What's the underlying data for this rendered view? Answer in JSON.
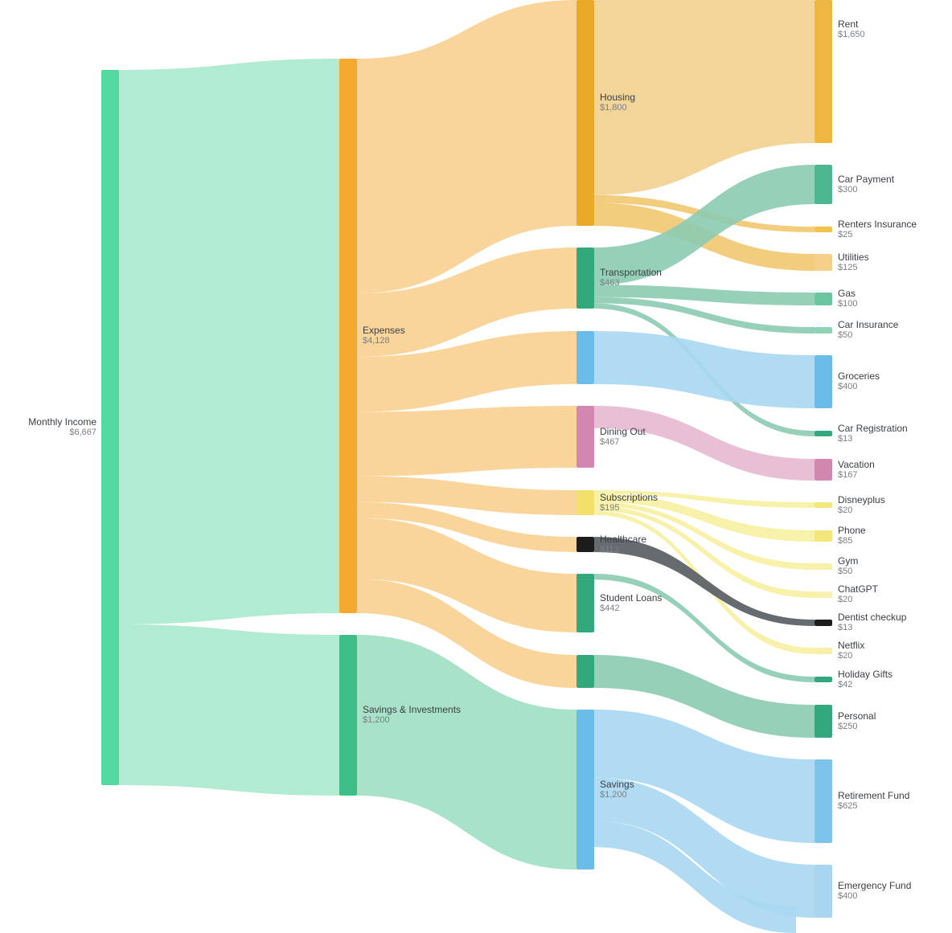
{
  "chart_data": {
    "type": "sankey",
    "nodes": [
      {
        "id": "income",
        "label": "Monthly Income",
        "value": "$6,667",
        "color": "#52d9a0"
      },
      {
        "id": "expenses",
        "label": "Expenses",
        "value": "$4,128",
        "color": "#f5a92e"
      },
      {
        "id": "savinv",
        "label": "Savings & Investments",
        "value": "$1,200",
        "color": "#3dbe88"
      },
      {
        "id": "housing",
        "label": "Housing",
        "value": "$1,800",
        "color": "#e9aa2a"
      },
      {
        "id": "transport",
        "label": "Transportation",
        "value": "$463",
        "color": "#33a87c"
      },
      {
        "id": "food",
        "label": "",
        "value": "",
        "color": "#6bbde9"
      },
      {
        "id": "dining",
        "label": "Dining Out",
        "value": "$467",
        "color": "#d286b0"
      },
      {
        "id": "subs",
        "label": "Subscriptions",
        "value": "$195",
        "color": "#f2e06a"
      },
      {
        "id": "health",
        "label": "Healthcare",
        "value": "$113",
        "color": "#1c1c1c"
      },
      {
        "id": "loans",
        "label": "Student Loans",
        "value": "$442",
        "color": "#33a87c"
      },
      {
        "id": "misc",
        "label": "",
        "value": "",
        "color": "#33a87c"
      },
      {
        "id": "savings",
        "label": "Savings",
        "value": "$1,200",
        "color": "#6bbde9"
      },
      {
        "id": "rent",
        "label": "Rent",
        "value": "$1,650",
        "color": "#edb640"
      },
      {
        "id": "carpay",
        "label": "Car Payment",
        "value": "$300",
        "color": "#4db890"
      },
      {
        "id": "renters",
        "label": "Renters Insurance",
        "value": "$25",
        "color": "#f3c04a"
      },
      {
        "id": "utilities",
        "label": "Utilities",
        "value": "$125",
        "color": "#f4d08a"
      },
      {
        "id": "gas",
        "label": "Gas",
        "value": "$100",
        "color": "#6cc6a0"
      },
      {
        "id": "carins",
        "label": "Car Insurance",
        "value": "$50",
        "color": "#8fd3b5"
      },
      {
        "id": "groceries",
        "label": "Groceries",
        "value": "$400",
        "color": "#6bbde9"
      },
      {
        "id": "carreg",
        "label": "Car Registration",
        "value": "$13",
        "color": "#33a87c"
      },
      {
        "id": "vacation",
        "label": "Vacation",
        "value": "$167",
        "color": "#d286b0"
      },
      {
        "id": "disney",
        "label": "Disneyplus",
        "value": "$20",
        "color": "#f3e77a"
      },
      {
        "id": "phone",
        "label": "Phone",
        "value": "$85",
        "color": "#f3e77a"
      },
      {
        "id": "gym",
        "label": "Gym",
        "value": "$50",
        "color": "#f8f0a8"
      },
      {
        "id": "chatgpt",
        "label": "ChatGPT",
        "value": "$20",
        "color": "#f8f0b0"
      },
      {
        "id": "dentist",
        "label": "Dentist checkup",
        "value": "$13",
        "color": "#1c1c1c"
      },
      {
        "id": "netflix",
        "label": "Netflix",
        "value": "$20",
        "color": "#f8f0a8"
      },
      {
        "id": "gifts",
        "label": "Holiday Gifts",
        "value": "$42",
        "color": "#33a87c"
      },
      {
        "id": "personal",
        "label": "Personal",
        "value": "$250",
        "color": "#33a87c"
      },
      {
        "id": "retire",
        "label": "Retirement Fund",
        "value": "$625",
        "color": "#7cc4ea"
      },
      {
        "id": "emergency",
        "label": "Emergency Fund",
        "value": "$400",
        "color": "#a8d6f0"
      },
      {
        "id": "savother",
        "label": "",
        "value": "",
        "color": "#a8d6f0"
      }
    ],
    "links": [
      {
        "source": "income",
        "target": "expenses",
        "color": "#a8e9cc"
      },
      {
        "source": "income",
        "target": "savinv",
        "color": "#a8e9cc"
      },
      {
        "source": "expenses",
        "target": "housing",
        "color": "#f8d090"
      },
      {
        "source": "expenses",
        "target": "transport",
        "color": "#f8d090"
      },
      {
        "source": "expenses",
        "target": "food",
        "color": "#f8d090"
      },
      {
        "source": "expenses",
        "target": "dining",
        "color": "#f8d090"
      },
      {
        "source": "expenses",
        "target": "subs",
        "color": "#f8d090"
      },
      {
        "source": "expenses",
        "target": "health",
        "color": "#f8d090"
      },
      {
        "source": "expenses",
        "target": "loans",
        "color": "#f8d090"
      },
      {
        "source": "expenses",
        "target": "misc",
        "color": "#f8d090"
      },
      {
        "source": "savinv",
        "target": "savings",
        "color": "#9ddfc3"
      },
      {
        "source": "housing",
        "target": "rent",
        "color": "#f2d08e"
      },
      {
        "source": "housing",
        "target": "renters",
        "color": "#f2c870"
      },
      {
        "source": "housing",
        "target": "utilities",
        "color": "#f2c870"
      },
      {
        "source": "transport",
        "target": "carpay",
        "color": "#8ccbb0"
      },
      {
        "source": "transport",
        "target": "gas",
        "color": "#8ccbb0"
      },
      {
        "source": "transport",
        "target": "carins",
        "color": "#8ccbb0"
      },
      {
        "source": "transport",
        "target": "carreg",
        "color": "#8ccbb0"
      },
      {
        "source": "food",
        "target": "groceries",
        "color": "#a9d7f2"
      },
      {
        "source": "dining",
        "target": "vacation",
        "color": "#e5b8d0"
      },
      {
        "source": "subs",
        "target": "disney",
        "color": "#f6f0a0"
      },
      {
        "source": "subs",
        "target": "phone",
        "color": "#f6f0a0"
      },
      {
        "source": "subs",
        "target": "gym",
        "color": "#f6f0a0"
      },
      {
        "source": "subs",
        "target": "chatgpt",
        "color": "#f6f0a0"
      },
      {
        "source": "subs",
        "target": "netflix",
        "color": "#f6f0a0"
      },
      {
        "source": "health",
        "target": "dentist",
        "color": "#555b60"
      },
      {
        "source": "loans",
        "target": "gifts",
        "color": "#8ccbb0"
      },
      {
        "source": "misc",
        "target": "personal",
        "color": "#8ccbb0"
      },
      {
        "source": "savings",
        "target": "retire",
        "color": "#a9d7f2"
      },
      {
        "source": "savings",
        "target": "emergency",
        "color": "#a9d7f2"
      },
      {
        "source": "savings",
        "target": "savother",
        "color": "#a9d7f2"
      }
    ]
  }
}
